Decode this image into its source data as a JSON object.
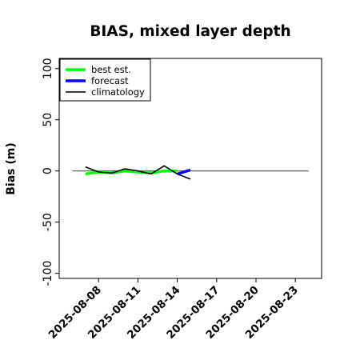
{
  "chart_data": {
    "type": "line",
    "title": "BIAS, mixed layer depth",
    "xlabel": "",
    "ylabel": "Bias (m)",
    "ylim": [
      -105,
      110
    ],
    "yticks": [
      -100,
      -50,
      0,
      50,
      100
    ],
    "ytick_labels": [
      "-100",
      "-50",
      "0",
      "50",
      "100"
    ],
    "xlim": [
      "2025-08-05",
      "2025-08-25"
    ],
    "xticks": [
      "2025-08-08",
      "2025-08-11",
      "2025-08-14",
      "2025-08-17",
      "2025-08-20",
      "2025-08-23"
    ],
    "highlighted_xtick": "2025-08-14",
    "highlight_color": "#228B22",
    "zero_line": true,
    "zero_line_range": [
      "2025-08-06",
      "2025-08-24"
    ],
    "grid": false,
    "legend_position": "top-left",
    "series": [
      {
        "name": "best est.",
        "color": "#00ff00",
        "x": [
          "2025-08-07",
          "2025-08-08",
          "2025-08-09",
          "2025-08-10",
          "2025-08-11",
          "2025-08-12",
          "2025-08-13",
          "2025-08-14"
        ],
        "y": [
          -3,
          -1,
          -2,
          0,
          -1,
          -2,
          0,
          0
        ]
      },
      {
        "name": "forecast",
        "color": "#0000ff",
        "x": [
          "2025-08-14",
          "2025-08-15"
        ],
        "y": [
          -3,
          1
        ]
      },
      {
        "name": "climatology",
        "color": "#000000",
        "x": [
          "2025-08-07",
          "2025-08-08",
          "2025-08-09",
          "2025-08-10",
          "2025-08-11",
          "2025-08-12",
          "2025-08-13",
          "2025-08-14",
          "2025-08-15"
        ],
        "y": [
          4,
          -1,
          -2,
          2,
          0,
          -3,
          5,
          -3,
          -8
        ]
      }
    ]
  }
}
